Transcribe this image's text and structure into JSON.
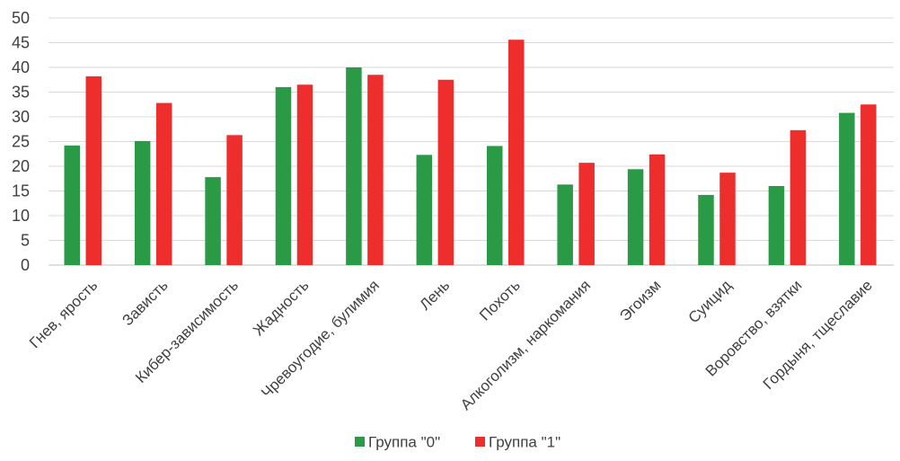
{
  "chart_data": {
    "type": "bar",
    "title": "",
    "xlabel": "",
    "ylabel": "",
    "ylim": [
      0,
      50
    ],
    "yticks": [
      "0",
      "5",
      "10",
      "15",
      "20",
      "25",
      "30",
      "35",
      "40",
      "45",
      "50"
    ],
    "grid": true,
    "legend_position": "bottom",
    "categories": [
      "Гнев, ярость",
      "Зависть",
      "Кибер-зависимость",
      "Жадность",
      "Чревоугодие, булимия",
      "Лень",
      "Похоть",
      "Алкоголизм, наркомания",
      "Эгоизм",
      "Суицид",
      "Воровство, взятки",
      "Гордыня, тщеславие"
    ],
    "series": [
      {
        "name": "Группа \"0\"",
        "color": "#2a9a47",
        "values": [
          24.2,
          25.1,
          17.8,
          36.0,
          40.0,
          22.3,
          24.1,
          16.3,
          19.4,
          14.2,
          16.0,
          30.8
        ]
      },
      {
        "name": "Группа \"1\"",
        "color": "#ee2d2d",
        "values": [
          38.2,
          32.8,
          26.3,
          36.5,
          38.5,
          37.5,
          45.6,
          20.7,
          22.4,
          18.7,
          27.3,
          32.5
        ]
      }
    ]
  }
}
